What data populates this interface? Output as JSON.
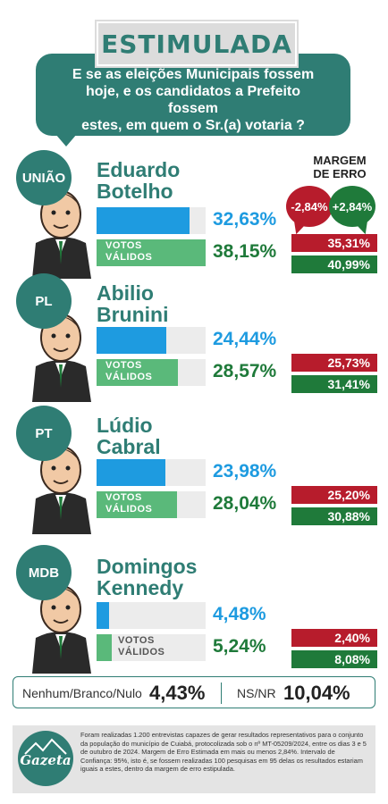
{
  "header": {
    "title": "ESTIMULADA",
    "question": "E se as eleições Municipais fossem\nhoje, e os candidatos a Prefeito fossem\nestes, em quem o Sr.(a) votaria ?"
  },
  "margin": {
    "title": "MARGEM\nDE ERRO",
    "minus": "-2,84%",
    "plus": "+2,84%"
  },
  "labels": {
    "valid_votes": "VOTOS\nVÁLIDOS"
  },
  "candidates": [
    {
      "party": "UNIÃO",
      "name": "Eduardo\nBotelho",
      "stimulated": "32,63%",
      "valid": "38,15%",
      "low": "35,31%",
      "high": "40,99%"
    },
    {
      "party": "PL",
      "name": "Abilio\nBrunini",
      "stimulated": "24,44%",
      "valid": "28,57%",
      "low": "25,73%",
      "high": "31,41%"
    },
    {
      "party": "PT",
      "name": "Lúdio\nCabral",
      "stimulated": "23,98%",
      "valid": "28,04%",
      "low": "25,20%",
      "high": "30,88%"
    },
    {
      "party": "MDB",
      "name": "Domingos\nKennedy",
      "stimulated": "4,48%",
      "valid": "5,24%",
      "low": "2,40%",
      "high": "8,08%"
    }
  ],
  "summary": {
    "none_label": "Nenhum/Branco/Nulo",
    "none_value": "4,43%",
    "nsnr_label": "NS/NR",
    "nsnr_value": "10,04%"
  },
  "footer": {
    "logo_word": "Gazeta",
    "text": "Foram realizadas 1.200 entrevistas capazes de gerar resultados representativos para o conjunto da população do município de Cuiabá, protocolizada sob o nº MT-05209/2024, entre os dias 3 e 5 de outubro de 2024. Margem de Erro Estimada em mais ou menos 2,84%. Intervalo de Confiança: 95%, isto é, se fossem realizadas 100 pesquisas em 95 delas os resultados estariam iguais a estes, dentro da margem de erro estipulada."
  },
  "chart_data": {
    "type": "bar",
    "title": "ESTIMULADA",
    "categories": [
      "Eduardo Botelho",
      "Abilio Brunini",
      "Lúdio Cabral",
      "Domingos Kennedy"
    ],
    "series": [
      {
        "values": [
          32.63,
          24.44,
          23.98,
          4.48
        ]
      },
      {
        "name": "VOTOS VÁLIDOS",
        "values": [
          38.15,
          28.57,
          28.04,
          5.24
        ]
      }
    ],
    "margin_of_error": 2.84,
    "valid_votes_range": [
      [
        35.31,
        40.99
      ],
      [
        25.73,
        31.41
      ],
      [
        25.2,
        30.88
      ],
      [
        2.4,
        8.08
      ]
    ],
    "others": {
      "Nenhum/Branco/Nulo": 4.43,
      "NS/NR": 10.04
    },
    "colors": {
      "stimulated": "#1e9be0",
      "valid": "#5ab97a",
      "low": "#b71c2c",
      "high": "#1f7a3a",
      "brand": "#2f7d74"
    },
    "ylim": [
      0,
      42
    ]
  }
}
